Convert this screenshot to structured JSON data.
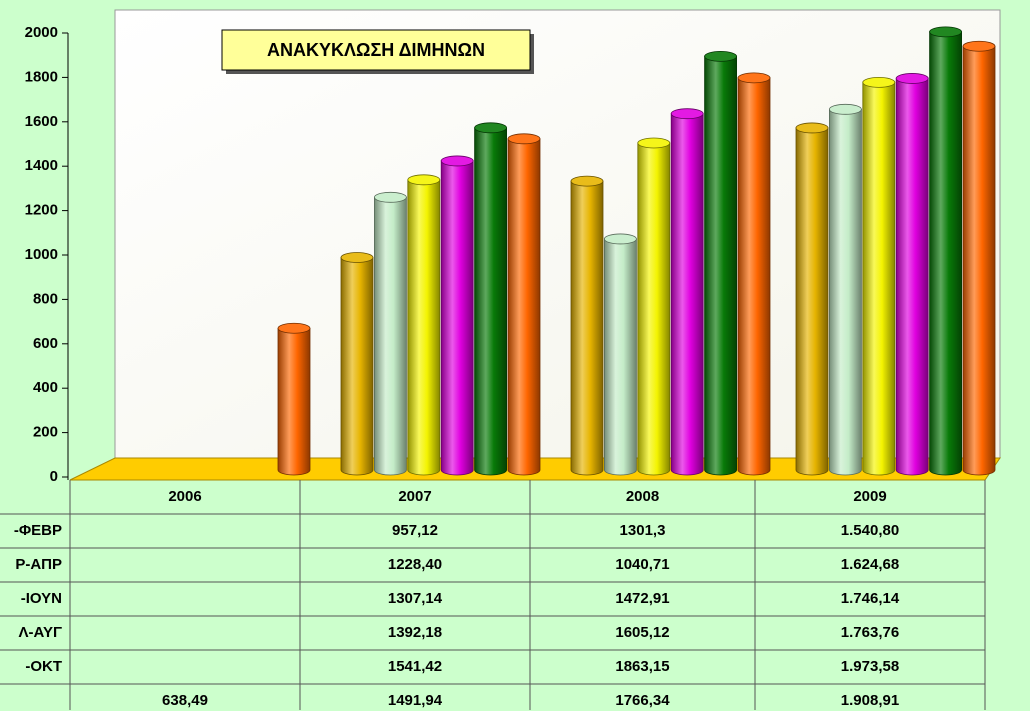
{
  "chart_data": {
    "type": "bar3d",
    "title": "ΑΝΑΚΥΚΛΩΣΗ ΔΙΜΗΝΩΝ",
    "categories": [
      "2006",
      "2007",
      "2008",
      "2009"
    ],
    "ylim": [
      0,
      2000
    ],
    "yticks": [
      0,
      200,
      400,
      600,
      800,
      1000,
      1200,
      1400,
      1600,
      1800,
      2000
    ],
    "series": [
      {
        "name": "-ΦΕΒΡ",
        "color": "#e6b400",
        "values": [
          null,
          957.12,
          1301.3,
          1540.8
        ],
        "value_labels": [
          null,
          "957,12",
          "1301,3",
          "1.540,80"
        ]
      },
      {
        "name": "Ρ-ΑΠΡ",
        "color": "#c4ecc8",
        "values": [
          null,
          1228.4,
          1040.71,
          1624.68
        ],
        "value_labels": [
          null,
          "1228,40",
          "1040,71",
          "1.624,68"
        ]
      },
      {
        "name": "-ΙΟΥΝ",
        "color": "#f4f400",
        "values": [
          null,
          1307.14,
          1472.91,
          1746.14
        ],
        "value_labels": [
          null,
          "1307,14",
          "1472,91",
          "1.746,14"
        ]
      },
      {
        "name": "Λ-ΑΥΓ",
        "color": "#e000e0",
        "values": [
          null,
          1392.18,
          1605.12,
          1763.76
        ],
        "value_labels": [
          null,
          "1392,18",
          "1605,12",
          "1.763,76"
        ]
      },
      {
        "name": "-ΟΚΤ",
        "color": "#087a08",
        "values": [
          null,
          1541.42,
          1863.15,
          1973.58
        ],
        "value_labels": [
          null,
          "1541,42",
          "1863,15",
          "1.973,58"
        ]
      },
      {
        "name": null,
        "color": "#ff6600",
        "values": [
          638.49,
          1491.94,
          1766.34,
          1908.91
        ],
        "value_labels": [
          "638,49",
          "1491,94",
          "1766,34",
          "1.908,91"
        ]
      }
    ]
  }
}
